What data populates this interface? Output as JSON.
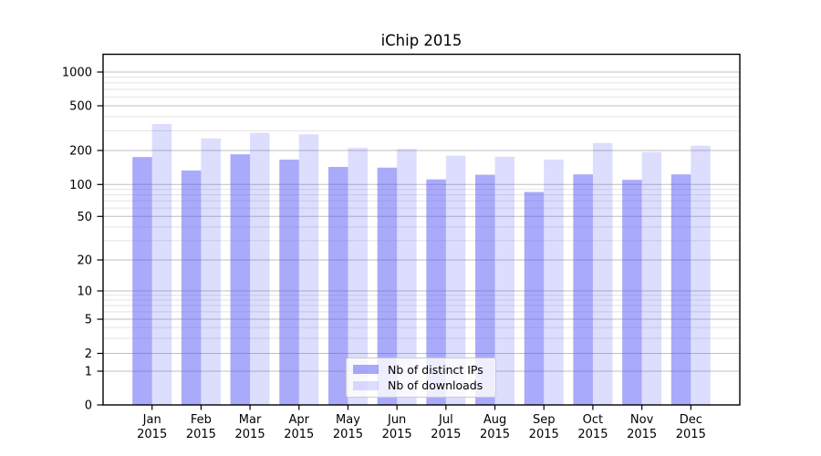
{
  "chart_data": {
    "type": "bar",
    "title": "iChip 2015",
    "categories": [
      "Jan 2015",
      "Feb 2015",
      "Mar 2015",
      "Apr 2015",
      "May 2015",
      "Jun 2015",
      "Jul 2015",
      "Aug 2015",
      "Sep 2015",
      "Oct 2015",
      "Nov 2015",
      "Dec 2015"
    ],
    "series": [
      {
        "name": "Nb of distinct IPs",
        "color": "rgba(85,85,245,0.5)",
        "values": [
          175,
          133,
          185,
          166,
          143,
          141,
          111,
          122,
          85,
          123,
          110,
          123
        ]
      },
      {
        "name": "Nb of downloads",
        "color": "rgba(85,85,245,0.2)",
        "values": [
          344,
          256,
          287,
          279,
          211,
          206,
          180,
          176,
          166,
          233,
          194,
          221
        ]
      }
    ],
    "yscale": "symlog",
    "y_ticks": [
      0,
      1,
      2,
      5,
      10,
      20,
      50,
      100,
      200,
      500,
      1000
    ],
    "y_minor_ticks": [
      3,
      4,
      6,
      7,
      8,
      9,
      30,
      40,
      60,
      70,
      80,
      90,
      300,
      400,
      600,
      700,
      800,
      900
    ],
    "ylim": [
      0,
      1400
    ],
    "xlabel": "",
    "ylabel": "",
    "grid": "on",
    "legend_position": "lower center"
  },
  "legend": {
    "items": [
      {
        "label": "Nb of distinct IPs",
        "swatch": "rgba(85,85,245,0.5)"
      },
      {
        "label": "Nb of downloads",
        "swatch": "rgba(85,85,245,0.2)"
      }
    ]
  },
  "colors": {
    "background": "#ffffff",
    "axis": "#000000",
    "grid_major": "#808080",
    "grid_minor": "#b0b0b0",
    "bar_base": "#5555f5",
    "legend_border": "#cccccc",
    "text": "#000000"
  }
}
